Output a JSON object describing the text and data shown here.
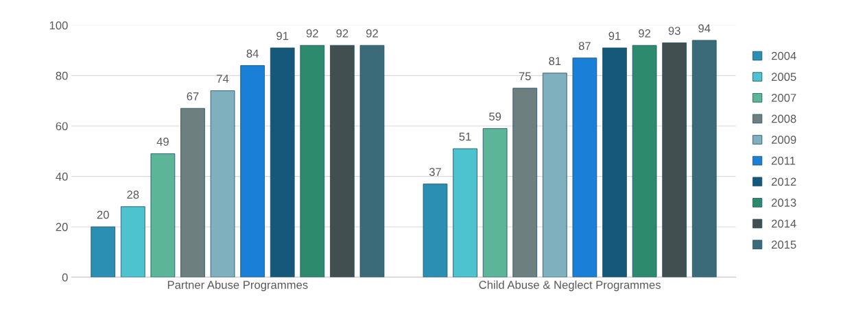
{
  "chart_data": {
    "type": "bar",
    "categories": [
      "Partner Abuse Programmes",
      "Child Abuse & Neglect Programmes"
    ],
    "series": [
      {
        "name": "2004",
        "color": "#2a8fb3",
        "values": [
          20,
          37
        ]
      },
      {
        "name": "2005",
        "color": "#4cc3cf",
        "values": [
          28,
          51
        ]
      },
      {
        "name": "2007",
        "color": "#5bb596",
        "values": [
          49,
          59
        ]
      },
      {
        "name": "2008",
        "color": "#6e7f80",
        "values": [
          67,
          75
        ]
      },
      {
        "name": "2009",
        "color": "#7fb0bd",
        "values": [
          74,
          81
        ]
      },
      {
        "name": "2011",
        "color": "#1a7fd6",
        "values": [
          84,
          87
        ]
      },
      {
        "name": "2012",
        "color": "#15587a",
        "values": [
          91,
          91
        ]
      },
      {
        "name": "2013",
        "color": "#2e8a6c",
        "values": [
          92,
          92
        ]
      },
      {
        "name": "2014",
        "color": "#414f51",
        "values": [
          92,
          93
        ]
      },
      {
        "name": "2015",
        "color": "#3b6b78",
        "values": [
          92,
          94
        ]
      }
    ],
    "ylim": [
      0,
      100
    ],
    "yticks": [
      0,
      20,
      40,
      60,
      80,
      100
    ],
    "grid": "y",
    "legend": "right",
    "data_labels": true
  }
}
